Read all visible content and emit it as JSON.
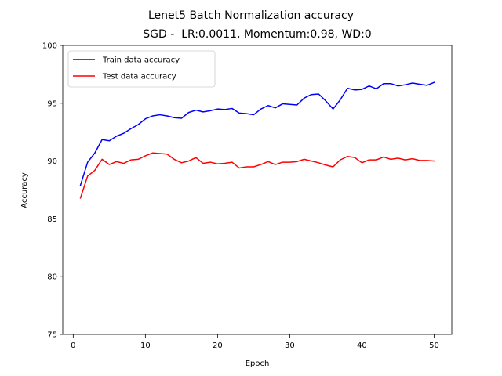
{
  "chart_data": {
    "type": "line",
    "title": "Lenet5 Batch Normalization accuracy",
    "subtitle": "SGD -  LR:0.0011, Momentum:0.98, WD:0",
    "xlabel": "Epoch",
    "ylabel": "Accuracy",
    "xlim": [
      -1.45,
      52.45
    ],
    "ylim": [
      75,
      100
    ],
    "xticks": [
      0,
      10,
      20,
      30,
      40,
      50
    ],
    "yticks": [
      75,
      80,
      85,
      90,
      95,
      100
    ],
    "grid": false,
    "legend_position": "top-left",
    "x": [
      1,
      2,
      3,
      4,
      5,
      6,
      7,
      8,
      9,
      10,
      11,
      12,
      13,
      14,
      15,
      16,
      17,
      18,
      19,
      20,
      21,
      22,
      23,
      24,
      25,
      26,
      27,
      28,
      29,
      30,
      31,
      32,
      33,
      34,
      35,
      36,
      37,
      38,
      39,
      40,
      41,
      42,
      43,
      44,
      45,
      46,
      47,
      48,
      49,
      50
    ],
    "series": [
      {
        "name": "Train data accuracy",
        "color": "#0000ff",
        "values": [
          87.9,
          89.9,
          90.7,
          91.85,
          91.75,
          92.15,
          92.4,
          92.8,
          93.15,
          93.65,
          93.9,
          94.0,
          93.9,
          93.75,
          93.7,
          94.2,
          94.4,
          94.25,
          94.35,
          94.5,
          94.45,
          94.55,
          94.15,
          94.1,
          94.0,
          94.5,
          94.8,
          94.6,
          94.95,
          94.9,
          94.85,
          95.45,
          95.75,
          95.8,
          95.2,
          94.5,
          95.3,
          96.3,
          96.15,
          96.2,
          96.5,
          96.25,
          96.7,
          96.7,
          96.5,
          96.6,
          96.75,
          96.65,
          96.55,
          96.8
        ]
      },
      {
        "name": "Test data accuracy",
        "color": "#ff0000",
        "values": [
          86.8,
          88.7,
          89.2,
          90.15,
          89.7,
          89.95,
          89.8,
          90.1,
          90.15,
          90.45,
          90.7,
          90.65,
          90.6,
          90.15,
          89.85,
          90.0,
          90.3,
          89.8,
          89.9,
          89.75,
          89.8,
          89.9,
          89.4,
          89.5,
          89.5,
          89.7,
          89.95,
          89.7,
          89.9,
          89.9,
          89.95,
          90.15,
          90.0,
          89.85,
          89.65,
          89.5,
          90.1,
          90.4,
          90.3,
          89.85,
          90.1,
          90.1,
          90.35,
          90.15,
          90.25,
          90.1,
          90.2,
          90.05,
          90.05,
          90.0
        ]
      }
    ]
  }
}
